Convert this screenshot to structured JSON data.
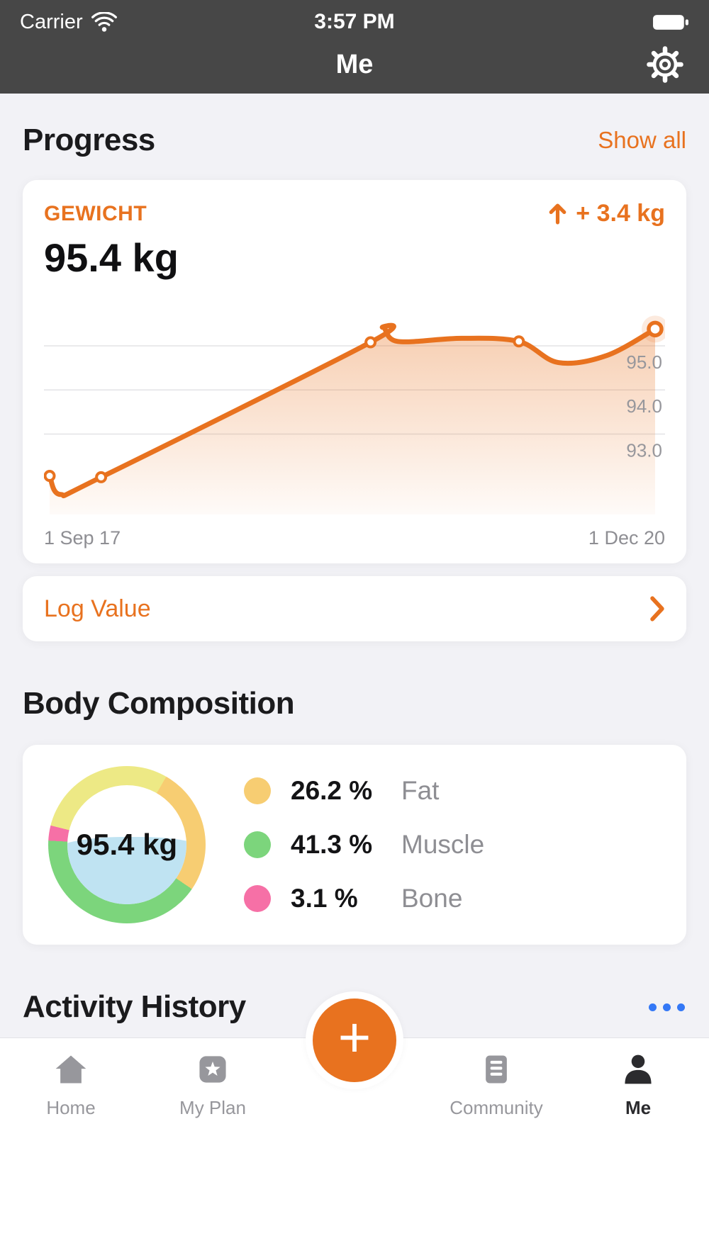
{
  "colors": {
    "accent": "#E8721F",
    "header_bg": "#474747",
    "page_bg": "#F2F2F6",
    "more_dots_blue": "#3478F6",
    "water_fill": "#BFE3F2",
    "gridline": "#E3E3E6"
  },
  "status_bar": {
    "carrier": "Carrier",
    "time": "3:57 PM"
  },
  "nav": {
    "title": "Me"
  },
  "progress": {
    "heading": "Progress",
    "show_all": "Show all",
    "metric_label": "GEWICHT",
    "delta": "+ 3.4 kg",
    "current_value": "95.4 kg"
  },
  "log_value": {
    "label": "Log Value"
  },
  "body_composition": {
    "heading": "Body Composition",
    "center_value": "95.4 kg",
    "ring": {
      "start_deg": 30,
      "segments": [
        {
          "name": "fat",
          "pct": 26.2,
          "color": "#F7CD72"
        },
        {
          "name": "muscle",
          "pct": 41.3,
          "color": "#7CD57C"
        },
        {
          "name": "bone",
          "pct": 3.1,
          "color": "#F670A6"
        },
        {
          "name": "other",
          "pct": 29.4,
          "color": "#EDE985"
        }
      ]
    },
    "legend": [
      {
        "value": "26.2 %",
        "label": "Fat",
        "color": "#F7CD72"
      },
      {
        "value": "41.3 %",
        "label": "Muscle",
        "color": "#7CD57C"
      },
      {
        "value": "3.1 %",
        "label": "Bone",
        "color": "#F670A6"
      }
    ]
  },
  "activity_history": {
    "heading": "Activity History"
  },
  "fab": {
    "label": "+"
  },
  "tab_bar": [
    {
      "label": "Home",
      "active": false
    },
    {
      "label": "My Plan",
      "active": false
    },
    {
      "label": "Community",
      "active": false
    },
    {
      "label": "Me",
      "active": true
    }
  ],
  "chart_data": {
    "type": "line",
    "title": "GEWICHT",
    "ylabel": "kg",
    "color": "#E8721F",
    "ylim": [
      91.4,
      95.9
    ],
    "gridlines": [
      95.0,
      94.0,
      93.0
    ],
    "x_labels": [
      "1 Sep 17",
      "1 Dec 20"
    ],
    "points": [
      {
        "x": 0.0,
        "y": 92.05,
        "marker": true
      },
      {
        "x": 0.018,
        "y": 91.63
      },
      {
        "x": 0.085,
        "y": 92.02,
        "marker": true
      },
      {
        "x": 0.53,
        "y": 95.08,
        "marker": true
      },
      {
        "x": 0.55,
        "y": 95.42
      },
      {
        "x": 0.575,
        "y": 95.1
      },
      {
        "x": 0.68,
        "y": 95.17
      },
      {
        "x": 0.775,
        "y": 95.1,
        "marker": true
      },
      {
        "x": 0.84,
        "y": 94.62
      },
      {
        "x": 0.92,
        "y": 94.78
      },
      {
        "x": 1.0,
        "y": 95.38,
        "marker": true,
        "highlight": true
      }
    ]
  }
}
